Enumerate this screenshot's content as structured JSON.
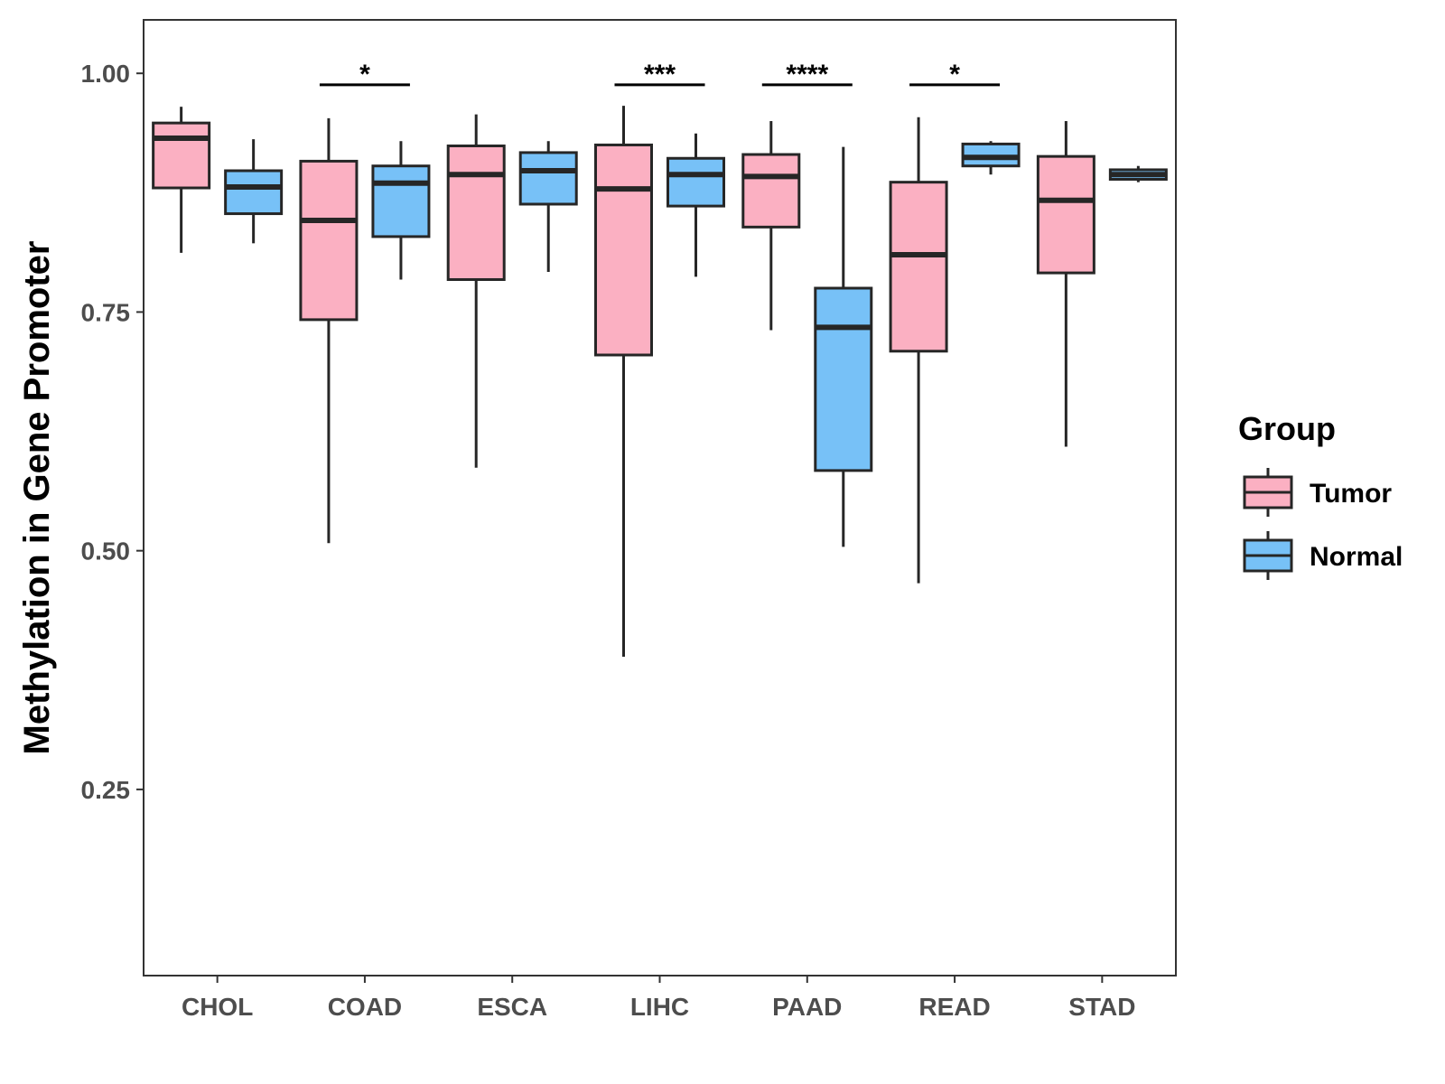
{
  "chart_data": {
    "type": "boxplot",
    "title": "",
    "xlabel": "",
    "ylabel": "Methylation in Gene Promoter",
    "ylim": [
      0.055,
      1.056
    ],
    "yticks": [
      0.25,
      0.5,
      0.75,
      1.0
    ],
    "ytick_labels": [
      "0.25",
      "0.50",
      "0.75",
      "1.00"
    ],
    "grid": false,
    "categories": [
      "CHOL",
      "COAD",
      "ESCA",
      "LIHC",
      "PAAD",
      "READ",
      "STAD"
    ],
    "legend": {
      "title": "Group",
      "position": "right",
      "entries": [
        {
          "name": "Tumor",
          "color": "#fbb0c2"
        },
        {
          "name": "Normal",
          "color": "#77c1f7"
        }
      ]
    },
    "series": [
      {
        "name": "Tumor",
        "color": "#fbb0c2",
        "boxes": [
          {
            "category": "CHOL",
            "min": 0.812,
            "q1": 0.88,
            "median": 0.932,
            "q3": 0.948,
            "max": 0.965
          },
          {
            "category": "COAD",
            "min": 0.508,
            "q1": 0.742,
            "median": 0.846,
            "q3": 0.908,
            "max": 0.953
          },
          {
            "category": "ESCA",
            "min": 0.587,
            "q1": 0.784,
            "median": 0.894,
            "q3": 0.924,
            "max": 0.957
          },
          {
            "category": "LIHC",
            "min": 0.389,
            "q1": 0.705,
            "median": 0.879,
            "q3": 0.925,
            "max": 0.966
          },
          {
            "category": "PAAD",
            "min": 0.731,
            "q1": 0.839,
            "median": 0.892,
            "q3": 0.915,
            "max": 0.95
          },
          {
            "category": "READ",
            "min": 0.466,
            "q1": 0.709,
            "median": 0.81,
            "q3": 0.886,
            "max": 0.954
          },
          {
            "category": "STAD",
            "min": 0.609,
            "q1": 0.791,
            "median": 0.867,
            "q3": 0.913,
            "max": 0.95
          }
        ]
      },
      {
        "name": "Normal",
        "color": "#77c1f7",
        "boxes": [
          {
            "category": "CHOL",
            "min": 0.822,
            "q1": 0.853,
            "median": 0.881,
            "q3": 0.898,
            "max": 0.931
          },
          {
            "category": "COAD",
            "min": 0.784,
            "q1": 0.829,
            "median": 0.885,
            "q3": 0.903,
            "max": 0.929
          },
          {
            "category": "ESCA",
            "min": 0.792,
            "q1": 0.863,
            "median": 0.898,
            "q3": 0.917,
            "max": 0.929
          },
          {
            "category": "LIHC",
            "min": 0.787,
            "q1": 0.861,
            "median": 0.894,
            "q3": 0.911,
            "max": 0.937
          },
          {
            "category": "PAAD",
            "min": 0.504,
            "q1": 0.584,
            "median": 0.734,
            "q3": 0.775,
            "max": 0.923
          },
          {
            "category": "READ",
            "min": 0.894,
            "q1": 0.903,
            "median": 0.912,
            "q3": 0.926,
            "max": 0.929
          },
          {
            "category": "STAD",
            "min": 0.886,
            "q1": 0.889,
            "median": 0.894,
            "q3": 0.899,
            "max": 0.903
          }
        ]
      }
    ],
    "significance": [
      {
        "category": "COAD",
        "label": "*",
        "bracket_y": 0.988
      },
      {
        "category": "LIHC",
        "label": "***",
        "bracket_y": 0.988
      },
      {
        "category": "PAAD",
        "label": "****",
        "bracket_y": 0.988
      },
      {
        "category": "READ",
        "label": "*",
        "bracket_y": 0.988
      }
    ]
  }
}
